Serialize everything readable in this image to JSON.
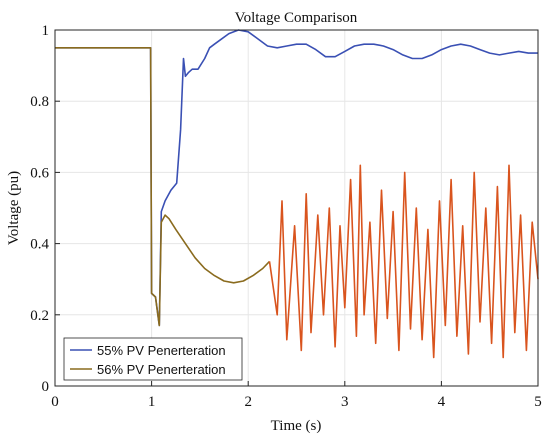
{
  "chart_data": {
    "type": "line",
    "title": "Voltage Comparison",
    "xlabel": "Time (s)",
    "ylabel": "Voltage (pu)",
    "xlim": [
      0,
      5
    ],
    "ylim": [
      0,
      1
    ],
    "x_ticks": [
      0,
      1,
      2,
      3,
      4,
      5
    ],
    "y_ticks": [
      0,
      0.2,
      0.4,
      0.6,
      0.8,
      1
    ],
    "x_tick_labels": [
      "0",
      "1",
      "2",
      "3",
      "4",
      "5"
    ],
    "y_tick_labels": [
      "0",
      "0.2",
      "0.4",
      "0.6",
      "0.8",
      "1"
    ],
    "grid": true,
    "legend_position": "bottom-left",
    "series": [
      {
        "name": "55% PV Penerteration",
        "color": "#3a50b4",
        "x": [
          0,
          0.3,
          0.6,
          0.9,
          0.99,
          1.0,
          1.04,
          1.08,
          1.1,
          1.14,
          1.2,
          1.26,
          1.3,
          1.33,
          1.35,
          1.38,
          1.42,
          1.48,
          1.55,
          1.6,
          1.65,
          1.7,
          1.8,
          1.9,
          2.0,
          2.1,
          2.2,
          2.3,
          2.4,
          2.5,
          2.6,
          2.7,
          2.8,
          2.9,
          3.0,
          3.1,
          3.2,
          3.3,
          3.4,
          3.5,
          3.6,
          3.7,
          3.8,
          3.9,
          4.0,
          4.1,
          4.2,
          4.3,
          4.4,
          4.5,
          4.6,
          4.7,
          4.8,
          4.9,
          5.0
        ],
        "y": [
          0.95,
          0.95,
          0.95,
          0.95,
          0.95,
          0.26,
          0.25,
          0.17,
          0.49,
          0.52,
          0.55,
          0.57,
          0.72,
          0.92,
          0.87,
          0.88,
          0.89,
          0.89,
          0.92,
          0.95,
          0.96,
          0.97,
          0.99,
          1.0,
          0.995,
          0.975,
          0.955,
          0.95,
          0.955,
          0.96,
          0.96,
          0.945,
          0.925,
          0.925,
          0.94,
          0.955,
          0.96,
          0.96,
          0.955,
          0.945,
          0.93,
          0.92,
          0.92,
          0.93,
          0.945,
          0.955,
          0.96,
          0.955,
          0.945,
          0.935,
          0.93,
          0.935,
          0.94,
          0.935,
          0.935
        ]
      },
      {
        "name": "56% PV Penerteration",
        "color": "#8a6b1e",
        "x": [
          0,
          0.3,
          0.6,
          0.9,
          0.99,
          1.0,
          1.04,
          1.08,
          1.1,
          1.14,
          1.18,
          1.25,
          1.35,
          1.45,
          1.55,
          1.65,
          1.75,
          1.85,
          1.95,
          2.05,
          2.15,
          2.22
        ],
        "y": [
          0.95,
          0.95,
          0.95,
          0.95,
          0.95,
          0.26,
          0.25,
          0.17,
          0.46,
          0.48,
          0.47,
          0.44,
          0.4,
          0.36,
          0.33,
          0.31,
          0.295,
          0.29,
          0.295,
          0.31,
          0.33,
          0.35
        ]
      },
      {
        "name": "",
        "color": "#d9541e",
        "x": [
          2.22,
          2.3,
          2.35,
          2.4,
          2.48,
          2.55,
          2.6,
          2.65,
          2.72,
          2.78,
          2.84,
          2.9,
          2.95,
          3.0,
          3.06,
          3.12,
          3.16,
          3.2,
          3.26,
          3.32,
          3.38,
          3.44,
          3.5,
          3.56,
          3.62,
          3.68,
          3.74,
          3.8,
          3.86,
          3.92,
          3.98,
          4.04,
          4.1,
          4.16,
          4.22,
          4.28,
          4.34,
          4.4,
          4.46,
          4.52,
          4.58,
          4.64,
          4.7,
          4.76,
          4.82,
          4.88,
          4.94,
          5.0
        ],
        "y": [
          0.35,
          0.2,
          0.52,
          0.13,
          0.45,
          0.1,
          0.54,
          0.15,
          0.48,
          0.2,
          0.5,
          0.11,
          0.45,
          0.22,
          0.58,
          0.14,
          0.62,
          0.2,
          0.46,
          0.12,
          0.55,
          0.19,
          0.49,
          0.1,
          0.6,
          0.16,
          0.5,
          0.13,
          0.44,
          0.08,
          0.52,
          0.17,
          0.58,
          0.14,
          0.45,
          0.09,
          0.6,
          0.18,
          0.5,
          0.12,
          0.56,
          0.08,
          0.62,
          0.15,
          0.48,
          0.1,
          0.46,
          0.3
        ]
      }
    ]
  }
}
